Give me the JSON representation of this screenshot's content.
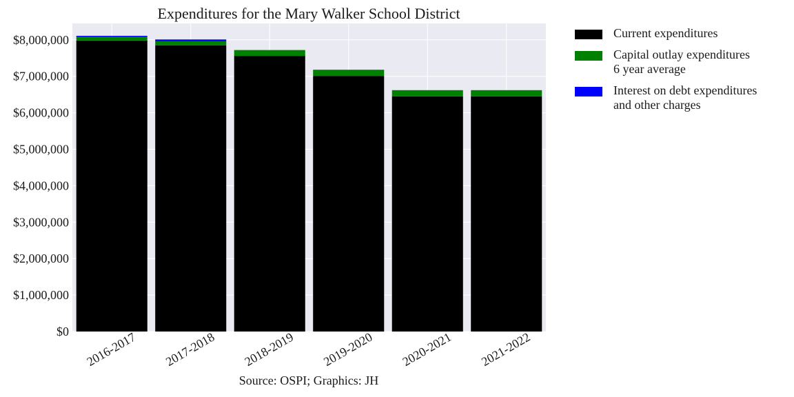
{
  "chart_data": {
    "type": "bar",
    "stacked": true,
    "title": "Expenditures for the Mary Walker School District",
    "xlabel": "",
    "ylabel": "",
    "categories": [
      "2016-2017",
      "2017-2018",
      "2018-2019",
      "2019-2020",
      "2020-2021",
      "2021-2022"
    ],
    "series": [
      {
        "name": "Current expenditures",
        "color": "#000000",
        "values": [
          7980000,
          7850000,
          7560000,
          7010000,
          6450000,
          6450000
        ]
      },
      {
        "name": "Capital outlay expenditures\n6 year average",
        "color": "#008000",
        "values": [
          110000,
          110000,
          160000,
          170000,
          170000,
          170000
        ]
      },
      {
        "name": "Interest on debt expenditures\nand other charges",
        "color": "#0000ff",
        "values": [
          20000,
          50000,
          0,
          0,
          0,
          0
        ]
      }
    ],
    "ylim": [
      0,
      8450000
    ],
    "yticks": [
      0,
      1000000,
      2000000,
      3000000,
      4000000,
      5000000,
      6000000,
      7000000,
      8000000
    ],
    "ytick_labels": [
      "$0",
      "$1,000,000",
      "$2,000,000",
      "$3,000,000",
      "$4,000,000",
      "$5,000,000",
      "$6,000,000",
      "$7,000,000",
      "$8,000,000"
    ],
    "grid": true,
    "legend_position": "outside-right",
    "background": "#eaeaf2"
  },
  "caption": "Source: OSPI; Graphics: JH"
}
